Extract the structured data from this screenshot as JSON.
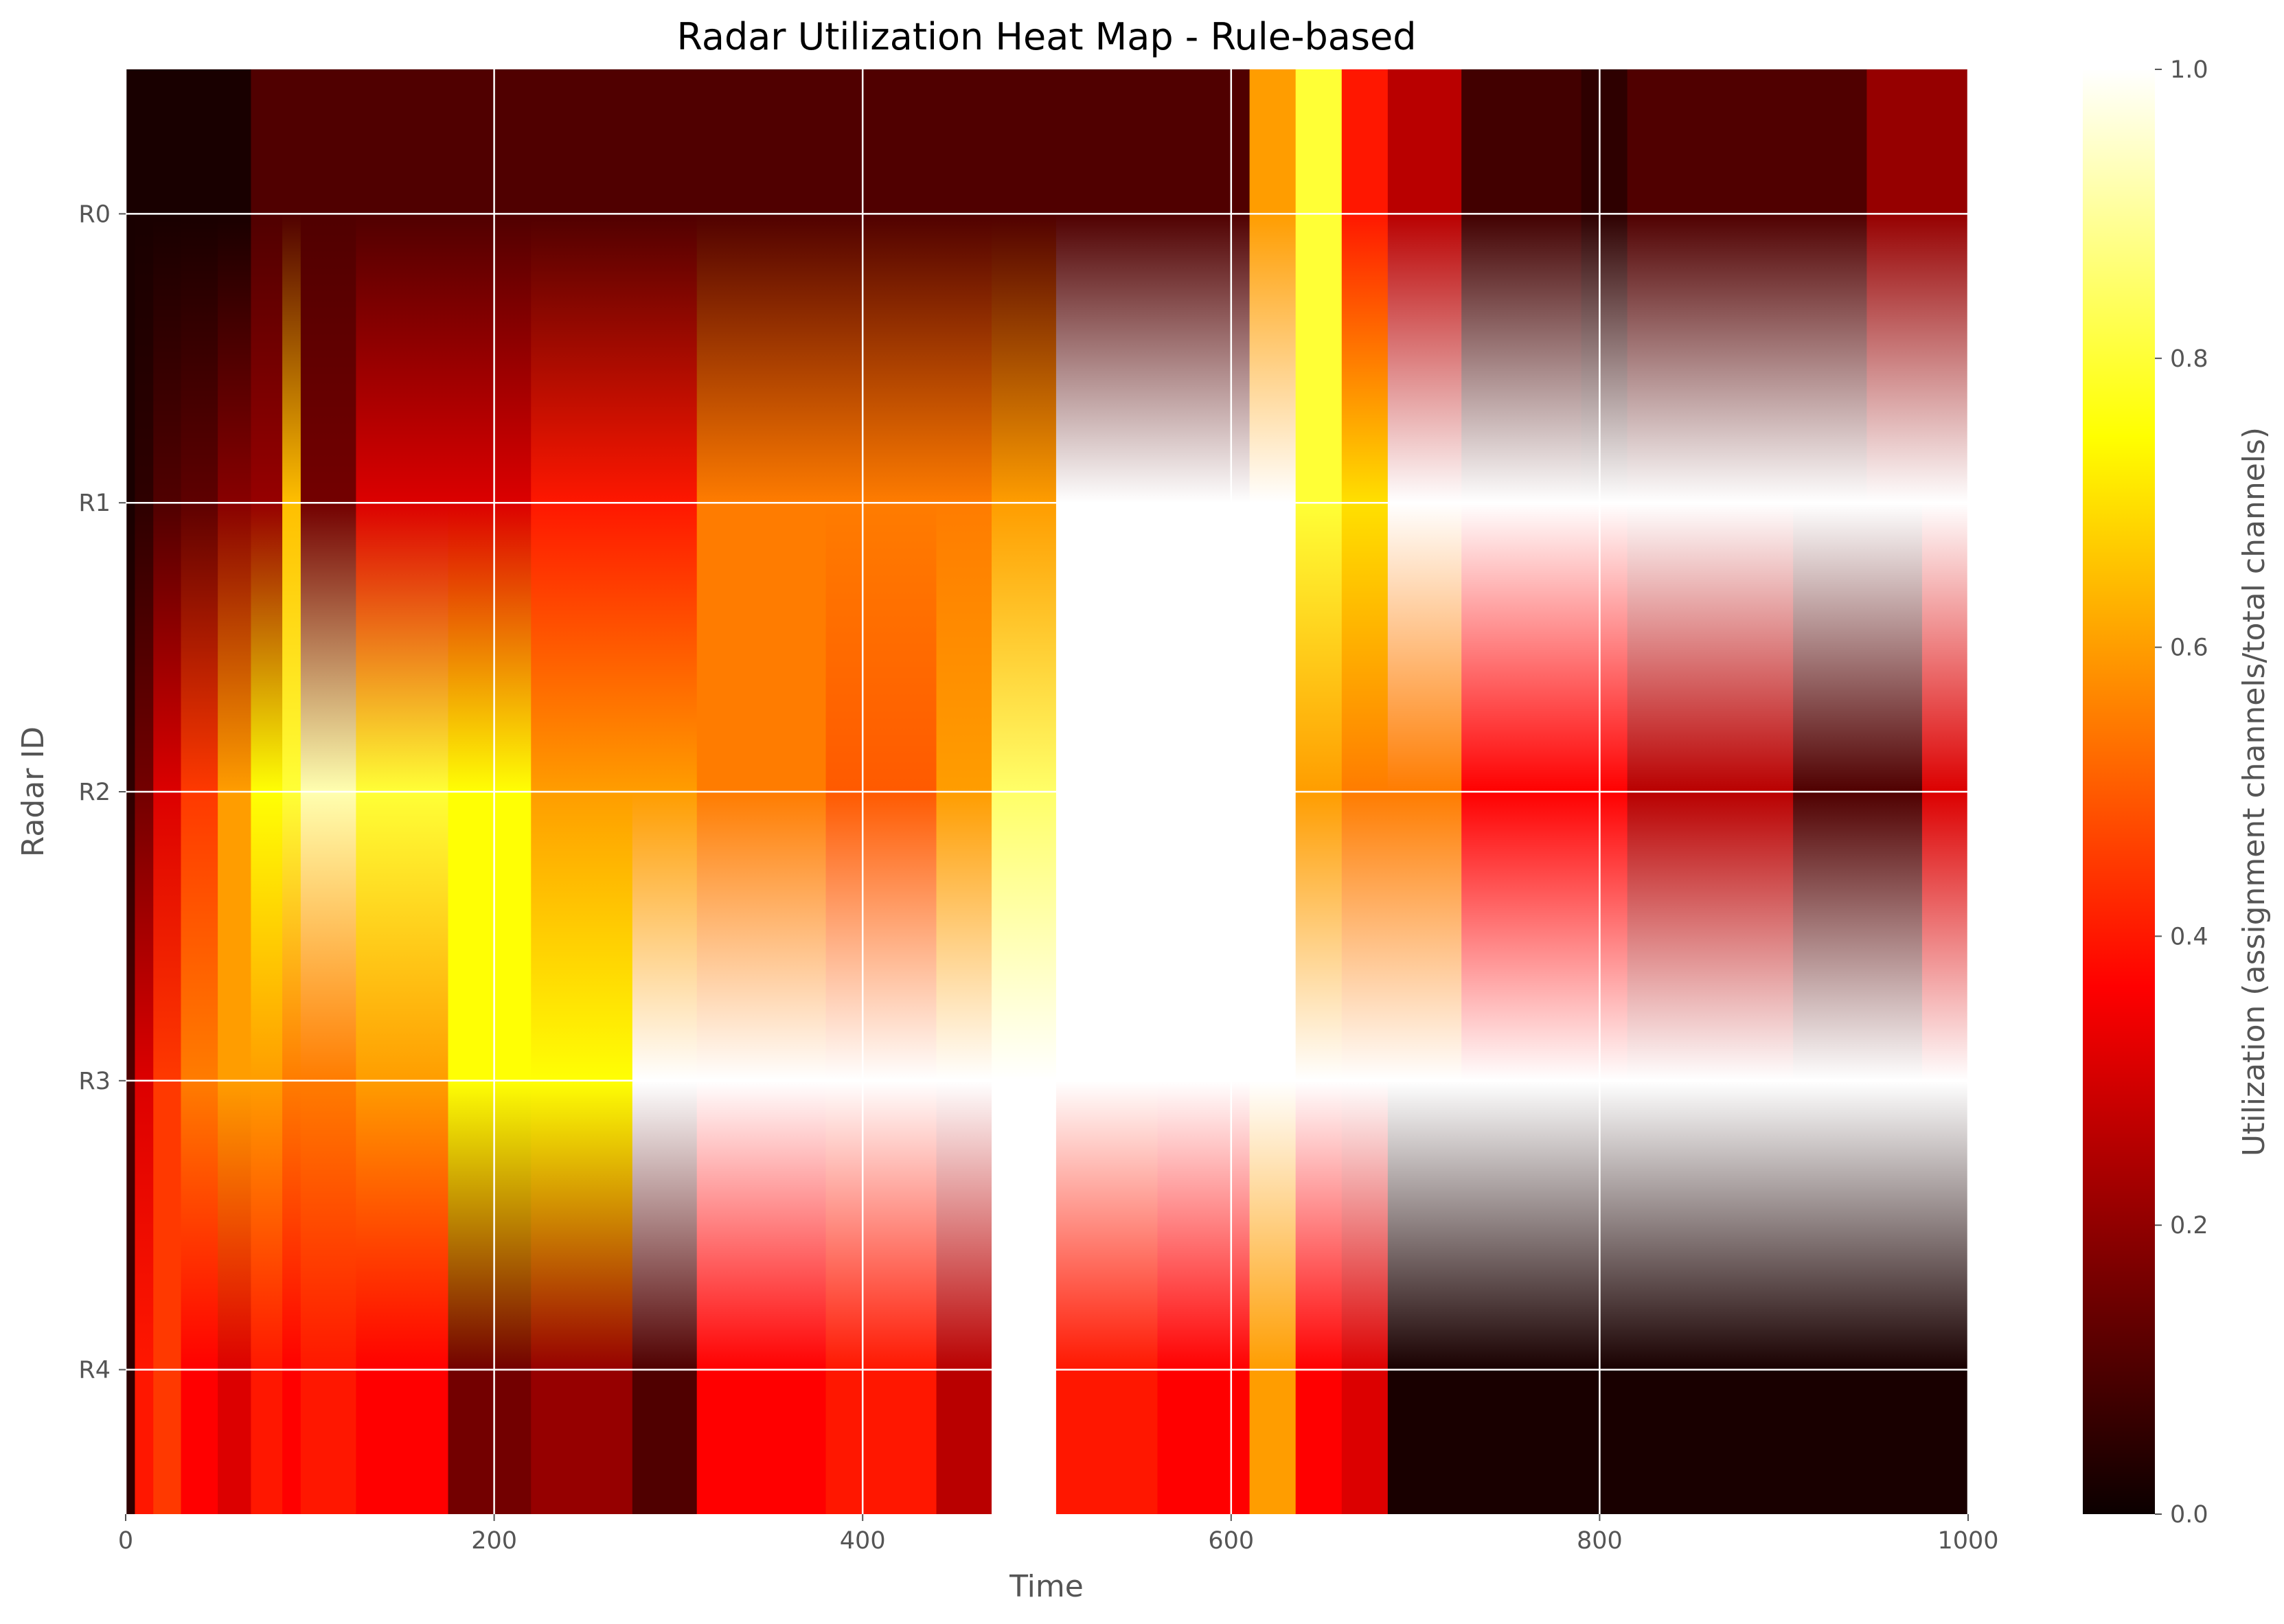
{
  "chart_data": {
    "type": "heatmap",
    "title": "Radar Utilization Heat Map - Rule-based",
    "xlabel": "Time",
    "ylabel": "Radar ID",
    "colorbar_label": "Utilization (assignment channels/total channels)",
    "colormap": "hot",
    "interpolation": "smooth",
    "grid": true,
    "xlim": [
      0,
      1000
    ],
    "x_ticks": [
      "0",
      "200",
      "400",
      "600",
      "800",
      "1000"
    ],
    "x_tick_values": [
      0,
      200,
      400,
      600,
      800,
      1000
    ],
    "colorbar_ticks": [
      "0.0",
      "0.2",
      "0.4",
      "0.6",
      "0.8",
      "1.0"
    ],
    "colorbar_tick_values": [
      0.0,
      0.2,
      0.4,
      0.6,
      0.8,
      1.0
    ],
    "vlim": [
      0,
      1
    ],
    "rows": [
      "R0",
      "R1",
      "R2",
      "R3",
      "R4"
    ],
    "segments": [
      {
        "x0": 0,
        "x1": 5,
        "values": [
          0.02,
          0.02,
          0.05,
          0.1,
          0.05
        ]
      },
      {
        "x0": 5,
        "x1": 15,
        "values": [
          0.02,
          0.05,
          0.15,
          0.3,
          0.4
        ]
      },
      {
        "x0": 15,
        "x1": 30,
        "values": [
          0.02,
          0.1,
          0.3,
          0.45,
          0.45
        ]
      },
      {
        "x0": 30,
        "x1": 50,
        "values": [
          0.02,
          0.12,
          0.45,
          0.55,
          0.35
        ]
      },
      {
        "x0": 50,
        "x1": 68,
        "values": [
          0.02,
          0.18,
          0.6,
          0.6,
          0.3
        ]
      },
      {
        "x0": 68,
        "x1": 85,
        "values": [
          0.1,
          0.2,
          0.75,
          0.6,
          0.4
        ]
      },
      {
        "x0": 85,
        "x1": 95,
        "values": [
          0.1,
          0.65,
          0.8,
          0.55,
          0.35
        ]
      },
      {
        "x0": 95,
        "x1": 125,
        "values": [
          0.1,
          0.15,
          0.92,
          0.55,
          0.4
        ]
      },
      {
        "x0": 125,
        "x1": 175,
        "values": [
          0.1,
          0.3,
          0.8,
          0.6,
          0.35
        ]
      },
      {
        "x0": 175,
        "x1": 220,
        "values": [
          0.1,
          0.3,
          0.75,
          0.75,
          0.15
        ]
      },
      {
        "x0": 220,
        "x1": 275,
        "values": [
          0.1,
          0.4,
          0.6,
          0.75,
          0.2
        ]
      },
      {
        "x0": 275,
        "x1": 310,
        "values": [
          0.1,
          0.4,
          0.6,
          1.0,
          0.1
        ]
      },
      {
        "x0": 310,
        "x1": 380,
        "values": [
          0.1,
          0.55,
          0.55,
          1.0,
          0.35
        ]
      },
      {
        "x0": 380,
        "x1": 440,
        "values": [
          0.1,
          0.55,
          0.5,
          1.0,
          0.4
        ]
      },
      {
        "x0": 440,
        "x1": 470,
        "values": [
          0.1,
          0.55,
          0.6,
          1.0,
          0.25
        ]
      },
      {
        "x0": 470,
        "x1": 505,
        "values": [
          0.1,
          0.6,
          0.85,
          1.0,
          1.0
        ]
      },
      {
        "x0": 505,
        "x1": 560,
        "values": [
          0.1,
          1.0,
          1.0,
          1.0,
          0.4
        ]
      },
      {
        "x0": 560,
        "x1": 610,
        "values": [
          0.1,
          1.0,
          1.0,
          1.0,
          0.35
        ]
      },
      {
        "x0": 610,
        "x1": 635,
        "values": [
          0.6,
          1.0,
          1.0,
          1.0,
          0.6
        ]
      },
      {
        "x0": 635,
        "x1": 660,
        "values": [
          0.8,
          0.8,
          0.6,
          1.0,
          0.35
        ]
      },
      {
        "x0": 660,
        "x1": 685,
        "values": [
          0.4,
          0.7,
          0.55,
          1.0,
          0.3
        ]
      },
      {
        "x0": 685,
        "x1": 725,
        "values": [
          0.25,
          1.0,
          0.55,
          1.0,
          0.02
        ]
      },
      {
        "x0": 725,
        "x1": 790,
        "values": [
          0.08,
          1.0,
          0.35,
          1.0,
          0.02
        ]
      },
      {
        "x0": 790,
        "x1": 815,
        "values": [
          0.05,
          1.0,
          0.35,
          1.0,
          0.02
        ]
      },
      {
        "x0": 815,
        "x1": 905,
        "values": [
          0.1,
          1.0,
          0.25,
          1.0,
          0.02
        ]
      },
      {
        "x0": 905,
        "x1": 945,
        "values": [
          0.1,
          1.0,
          0.1,
          1.0,
          0.02
        ]
      },
      {
        "x0": 945,
        "x1": 975,
        "values": [
          0.2,
          1.0,
          0.1,
          1.0,
          0.02
        ]
      },
      {
        "x0": 975,
        "x1": 1000,
        "values": [
          0.2,
          1.0,
          0.3,
          1.0,
          0.02
        ]
      }
    ]
  }
}
